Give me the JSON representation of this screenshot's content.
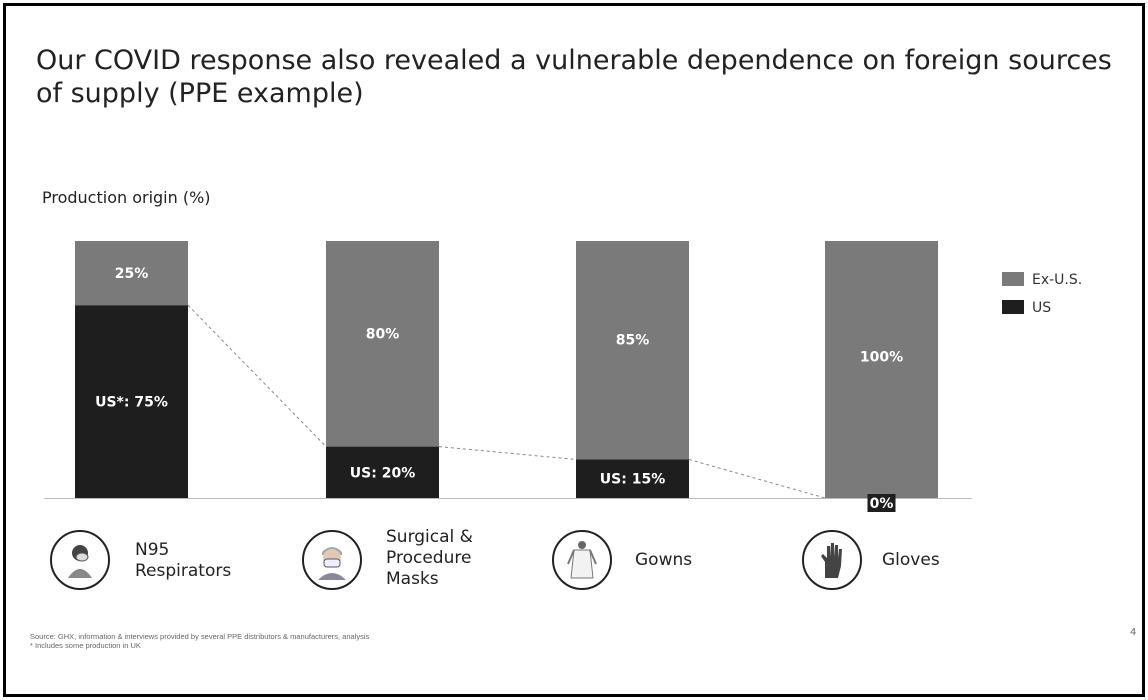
{
  "slide": {
    "title": "Our COVID response also revealed a vulnerable dependence on foreign sources of supply (PPE example)",
    "subtitle": "Production origin (%)",
    "source_line1": "Source: GHX, information & interviews provided by several PPE distributors & manufacturers, analysis",
    "source_line2": "* Includes some production in UK",
    "page_number": "4"
  },
  "categories_display": [
    {
      "label": "N95 Respirators",
      "lines": [
        "N95",
        "Respirators"
      ],
      "icon": "respirator-person-icon"
    },
    {
      "label": "Surgical & Procedure Masks",
      "lines": [
        "Surgical &",
        "Procedure",
        "Masks"
      ],
      "icon": "surgical-mask-person-icon"
    },
    {
      "label": "Gowns",
      "lines": [
        "Gowns"
      ],
      "icon": "gown-icon"
    },
    {
      "label": "Gloves",
      "lines": [
        "Gloves"
      ],
      "icon": "glove-icon"
    }
  ],
  "chart_data": {
    "type": "bar",
    "stacked": true,
    "categories": [
      "N95 Respirators",
      "Surgical & Procedure Masks",
      "Gowns",
      "Gloves"
    ],
    "series": [
      {
        "name": "US",
        "values": [
          75,
          20,
          15,
          0
        ],
        "color": "#1e1e1e",
        "labels": [
          "US*: 75%",
          "US: 20%",
          "US: 15%",
          "0%"
        ]
      },
      {
        "name": "Ex-U.S.",
        "values": [
          25,
          80,
          85,
          100
        ],
        "color": "#7a7a7a",
        "labels": [
          "25%",
          "80%",
          "85%",
          "100%"
        ]
      }
    ],
    "ylim": [
      0,
      100
    ],
    "legend": {
      "position": "right",
      "entries": [
        "Ex-U.S.",
        "US"
      ]
    },
    "dashed_connector": true
  }
}
